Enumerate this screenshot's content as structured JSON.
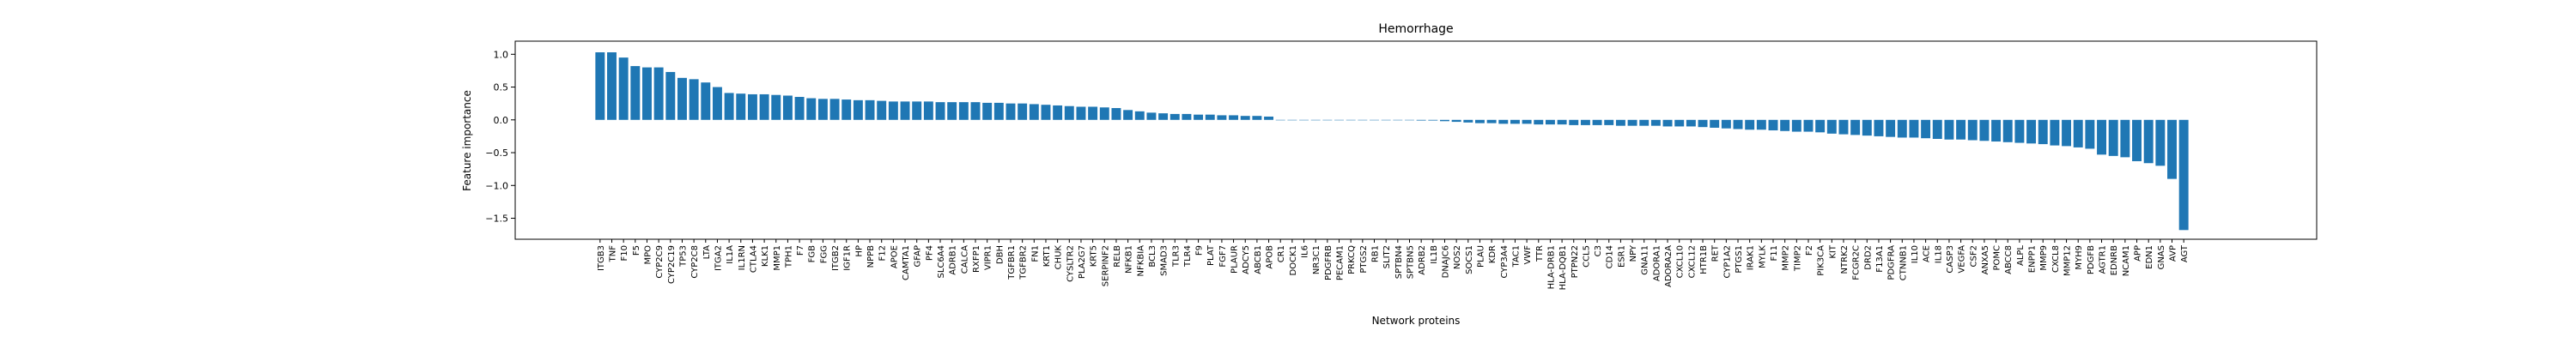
{
  "chart_data": {
    "type": "bar",
    "title": "Hemorrhage",
    "xlabel": "Network proteins",
    "ylabel": "Feature importance",
    "color": "#1f77b4",
    "categories": [
      "ITGB3",
      "TNF",
      "F10",
      "F5",
      "MPO",
      "CYP2C9",
      "CYP2C19",
      "TP53",
      "CYP2C8",
      "LTA",
      "ITGA2",
      "IL1A",
      "IL1RN",
      "CTLA4",
      "KLK1",
      "MMP1",
      "TPH1",
      "F7",
      "FGB",
      "FGG",
      "ITGB2",
      "IGF1R",
      "HP",
      "NPPB",
      "F12",
      "APOE",
      "CAMTA1",
      "GFAP",
      "PF4",
      "SLC6A4",
      "ADRB1",
      "CALCA",
      "RXFP1",
      "VIPR1",
      "DBH",
      "TGFBR1",
      "TGFBR2",
      "FN1",
      "KRT1",
      "CHUK",
      "CYSLTR2",
      "PLA2G7",
      "KRT5",
      "SERPINF2",
      "RELB",
      "NFKB1",
      "NFKBIA",
      "BCL3",
      "SMAD3",
      "TLR3",
      "TLR4",
      "F9",
      "PLAT",
      "FGF7",
      "PLAUR",
      "ADCY5",
      "ABCB1",
      "APOB",
      "CR1",
      "DOCK1",
      "IL6",
      "NR3C1",
      "PDGFRB",
      "PECAM1",
      "PRKCQ",
      "PTGS2",
      "RB1",
      "SLIT2",
      "SPTBN4",
      "SPTBN5",
      "ADRB2",
      "IL1B",
      "DNAJC6",
      "NOS2",
      "SOCS1",
      "PLAU",
      "KDR",
      "CYP3A4",
      "TAC1",
      "VWF",
      "TTR",
      "HLA-DRB1",
      "HLA-DQB1",
      "PTPN22",
      "CCL5",
      "C3",
      "CD14",
      "ESR1",
      "NPY",
      "GNA11",
      "ADORA1",
      "ADORA2A",
      "CXCL10",
      "CXCL12",
      "HTR1B",
      "RET",
      "CYP1A2",
      "PTGS1",
      "IRAK1",
      "MYLK",
      "F11",
      "MMP2",
      "TIMP2",
      "F2",
      "PIK3CA",
      "KIT",
      "NTRK2",
      "FCGR2C",
      "DRD2",
      "F13A1",
      "PDGFRA",
      "CTNNB1",
      "IL10",
      "ACE",
      "IL18",
      "CASP3",
      "VEGFA",
      "CSF2",
      "ANXA5",
      "POMC",
      "ABCC8",
      "ALPL",
      "ENPP1",
      "MMP9",
      "CXCL8",
      "MMP12",
      "MYH9",
      "PDGFB",
      "AGTR1",
      "EDNRB",
      "NCAM1",
      "APP",
      "EDN1",
      "GNAS",
      "AVP",
      "AGT"
    ],
    "values": [
      1.03,
      1.03,
      0.95,
      0.82,
      0.8,
      0.8,
      0.73,
      0.64,
      0.62,
      0.57,
      0.5,
      0.41,
      0.4,
      0.39,
      0.39,
      0.38,
      0.37,
      0.35,
      0.33,
      0.32,
      0.32,
      0.31,
      0.3,
      0.3,
      0.29,
      0.28,
      0.28,
      0.28,
      0.28,
      0.27,
      0.27,
      0.27,
      0.27,
      0.26,
      0.26,
      0.25,
      0.25,
      0.24,
      0.23,
      0.22,
      0.21,
      0.2,
      0.2,
      0.19,
      0.18,
      0.15,
      0.13,
      0.11,
      0.1,
      0.09,
      0.09,
      0.08,
      0.08,
      0.07,
      0.07,
      0.06,
      0.06,
      0.05,
      0,
      0,
      0,
      0,
      0,
      0,
      0,
      0,
      0,
      0,
      0,
      0,
      -0.01,
      -0.01,
      -0.02,
      -0.03,
      -0.04,
      -0.05,
      -0.05,
      -0.06,
      -0.06,
      -0.06,
      -0.07,
      -0.07,
      -0.07,
      -0.08,
      -0.08,
      -0.08,
      -0.08,
      -0.09,
      -0.09,
      -0.09,
      -0.09,
      -0.1,
      -0.1,
      -0.1,
      -0.11,
      -0.12,
      -0.13,
      -0.14,
      -0.15,
      -0.15,
      -0.16,
      -0.17,
      -0.18,
      -0.18,
      -0.19,
      -0.21,
      -0.22,
      -0.23,
      -0.24,
      -0.25,
      -0.26,
      -0.27,
      -0.27,
      -0.28,
      -0.29,
      -0.3,
      -0.3,
      -0.31,
      -0.32,
      -0.33,
      -0.34,
      -0.35,
      -0.36,
      -0.37,
      -0.39,
      -0.4,
      -0.42,
      -0.44,
      -0.53,
      -0.55,
      -0.57,
      -0.63,
      -0.66,
      -0.7,
      -0.9,
      -1.68
    ],
    "ylim": [
      -1.82,
      1.2
    ],
    "yticks": [
      {
        "value": -1.5,
        "label": "−1.5"
      },
      {
        "value": -1.0,
        "label": "−1.0"
      },
      {
        "value": -0.5,
        "label": "−0.5"
      },
      {
        "value": 0.0,
        "label": "0.0"
      },
      {
        "value": 0.5,
        "label": "0.5"
      },
      {
        "value": 1.0,
        "label": "1.0"
      }
    ],
    "grid": false
  }
}
